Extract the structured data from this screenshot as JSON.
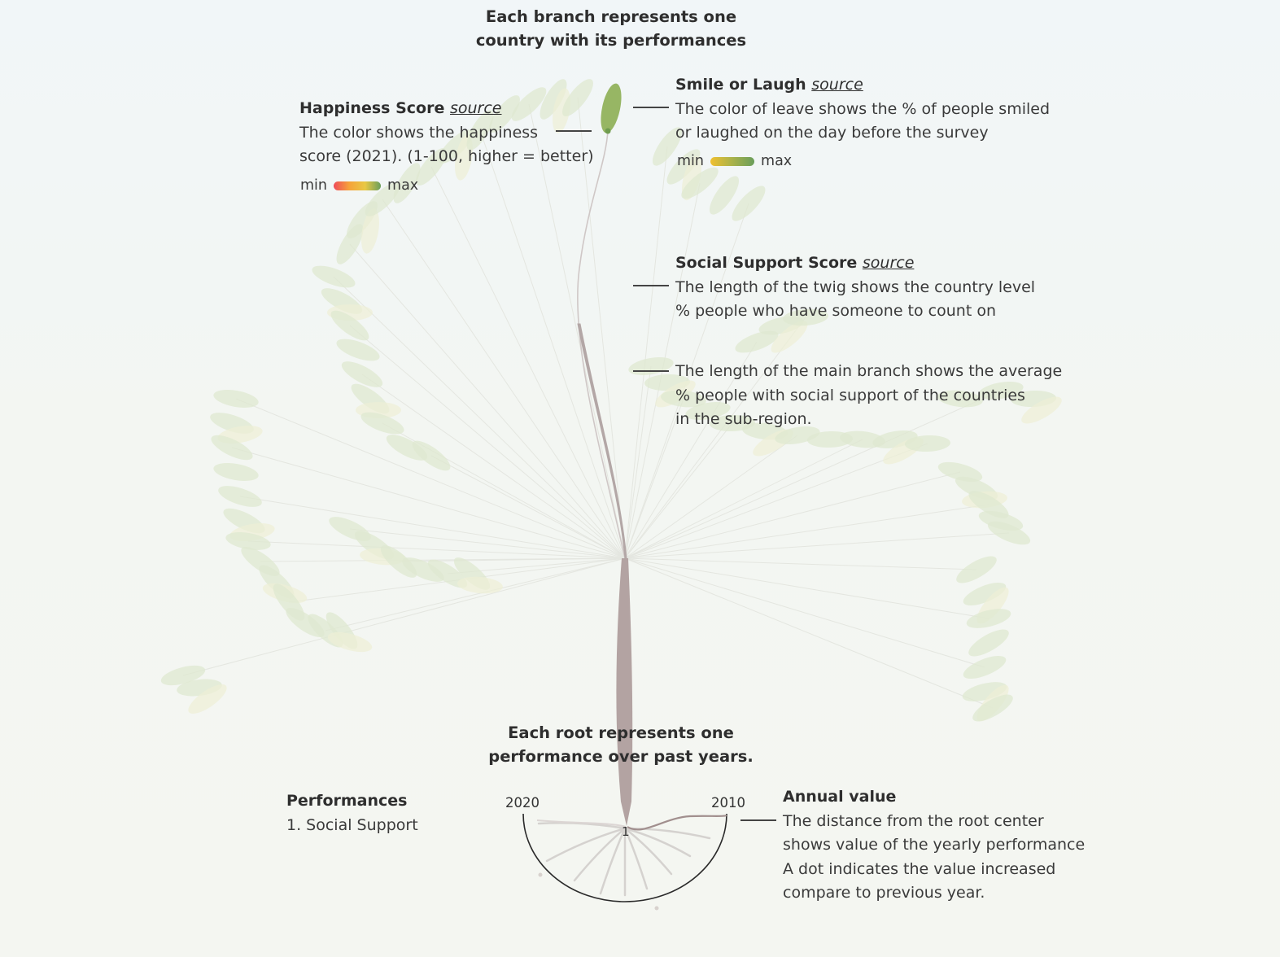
{
  "header": {
    "branch_title_line1": "Each branch represents one",
    "branch_title_line2": "country with its performances"
  },
  "happiness": {
    "title": "Happiness Score",
    "source_label": "source",
    "line1": "The color shows the happiness",
    "line2": "score (2021). (1-100, higher = better)",
    "legend_min": "min",
    "legend_max": "max",
    "gradient_colors": [
      "#ef4b5a",
      "#f2c23a",
      "#6a9e5b"
    ]
  },
  "smile": {
    "title": "Smile or Laugh",
    "source_label": "source",
    "line1": "The color of leave shows the % of people smiled",
    "line2": "or laughed on the day before the survey",
    "legend_min": "min",
    "legend_max": "max",
    "gradient_colors": [
      "#f0c030",
      "#6a9e5b"
    ]
  },
  "social": {
    "title": "Social Support Score",
    "source_label": "source",
    "line1": "The length of the twig shows the country level",
    "line2": "% people who have someone to count on"
  },
  "branch_length": {
    "line1": "The length of the main branch shows the average",
    "line2": "% people with social support of the countries",
    "line3": "in the sub-region."
  },
  "root": {
    "title_line1": "Each root represents one",
    "title_line2": "performance over past years.",
    "year_left": "2020",
    "year_right": "2010",
    "center_label": "1"
  },
  "performances": {
    "title": "Performances",
    "item1": "1. Social Support"
  },
  "annual": {
    "title": "Annual value",
    "line1": "The distance from the root center",
    "line2": "shows value of the yearly performance",
    "line3": "A dot indicates the value increased",
    "line4": "compare to previous year."
  },
  "colors": {
    "stem": "#a49594",
    "leaf_highlight": "#8fb057",
    "leaf_faded": "#e3ead6",
    "text": "#333333"
  }
}
